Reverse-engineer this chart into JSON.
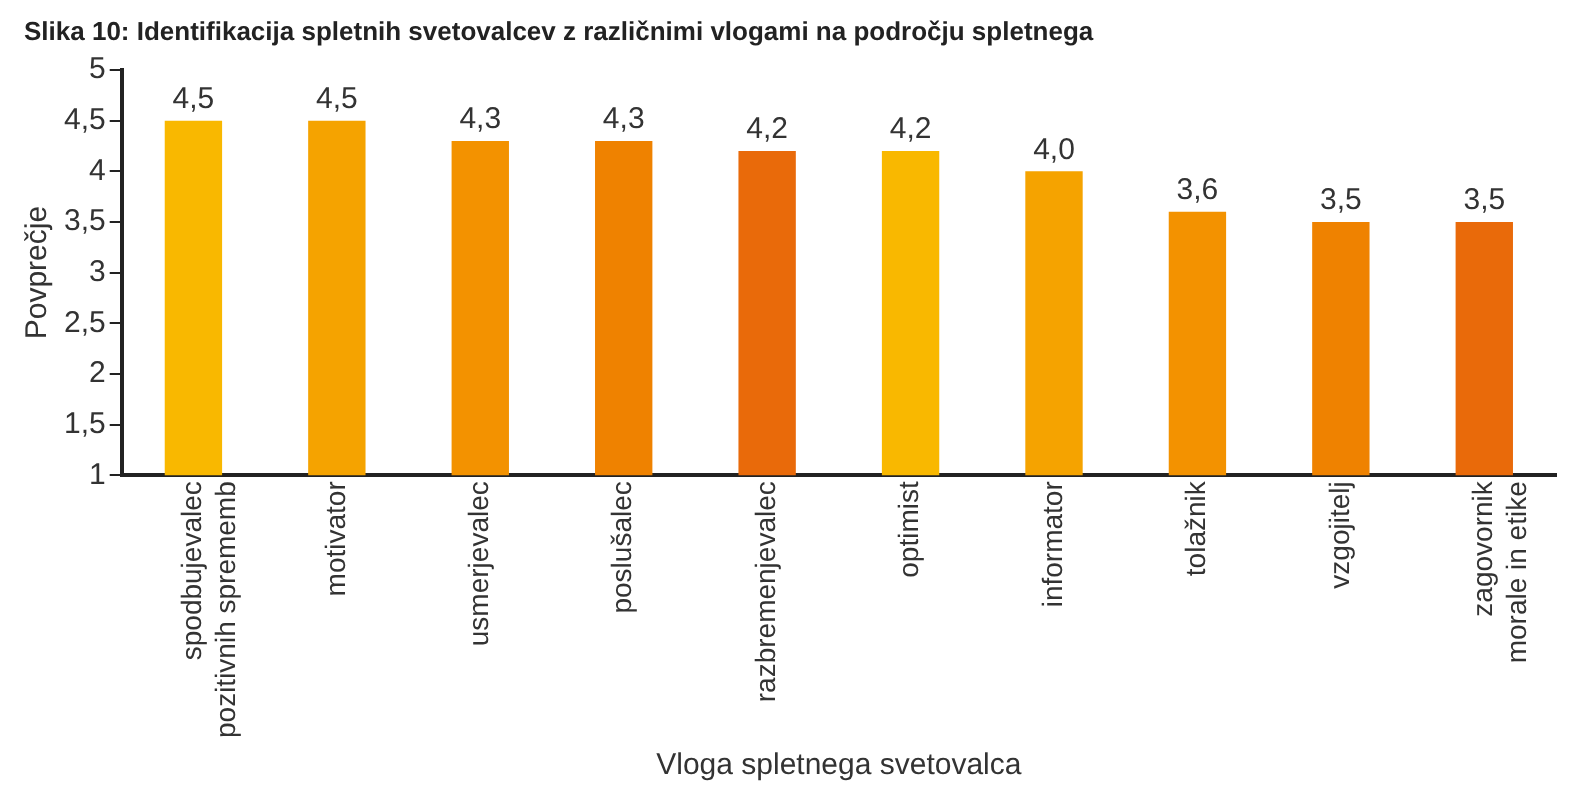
{
  "chart_data": {
    "type": "bar",
    "title": "Slika 10: Identifikacija spletnih svetovalcev z različnimi vlogami na področju spletnega",
    "xlabel": "Vloga spletnega svetovalca",
    "ylabel": "Povprečje",
    "categories": [
      "spodbujevalec\npozitivnih sprememb",
      "motivator",
      "usmerjevalec",
      "poslušalec",
      "razbremenjevalec",
      "optimist",
      "informator",
      "tolažnik",
      "vzgojitelj",
      "zagovornik\nmorale in etike"
    ],
    "values": [
      4.5,
      4.5,
      4.3,
      4.3,
      4.2,
      4.2,
      4.0,
      3.6,
      3.5,
      3.5
    ],
    "value_labels": [
      "4,5",
      "4,5",
      "4,3",
      "4,3",
      "4,2",
      "4,2",
      "4,0",
      "3,6",
      "3,5",
      "3,5"
    ],
    "colors": [
      "#f9b800",
      "#f5a300",
      "#f39200",
      "#ef8200",
      "#e96a0a",
      "#f9b800",
      "#f5a300",
      "#f39200",
      "#ef8200",
      "#e96a0a"
    ],
    "ylim": [
      1,
      5
    ],
    "yticks": [
      1,
      {
        "value": 1.5,
        "label": "1,5"
      },
      2,
      {
        "value": 2.5,
        "label": "2,5"
      },
      3,
      {
        "value": 3.5,
        "label": "3,5"
      },
      4,
      {
        "value": 4.5,
        "label": "4,5"
      },
      5
    ],
    "grid": false,
    "legend": false
  }
}
